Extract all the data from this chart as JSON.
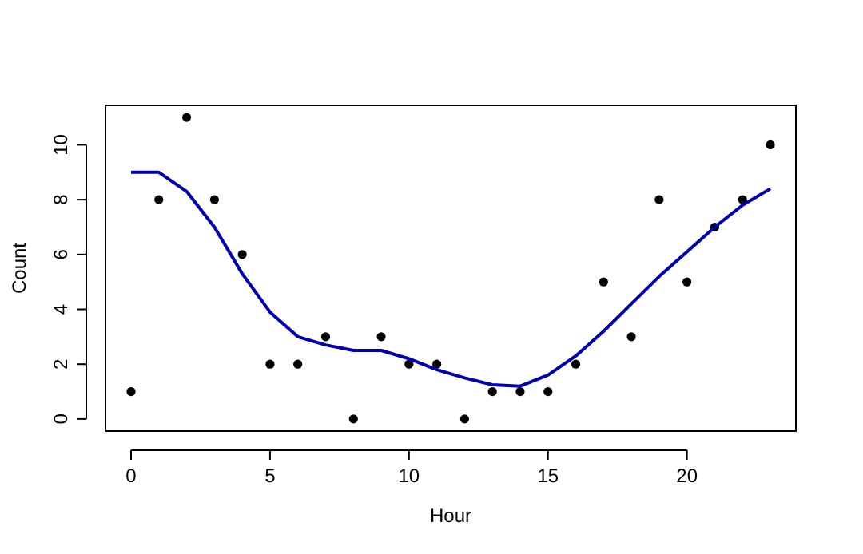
{
  "chart_data": {
    "type": "scatter",
    "xlabel": "Hour",
    "ylabel": "Count",
    "x": [
      0,
      1,
      2,
      3,
      4,
      5,
      6,
      7,
      8,
      9,
      10,
      11,
      12,
      13,
      14,
      15,
      16,
      17,
      18,
      19,
      20,
      21,
      22,
      23
    ],
    "xlim": [
      -0.92,
      23.92
    ],
    "ylim": [
      -0.44,
      11.44
    ],
    "xticks": [
      0,
      5,
      10,
      15,
      20
    ],
    "yticks": [
      0,
      2,
      4,
      6,
      8,
      10
    ],
    "series": [
      {
        "color": "#000000",
        "marker": "circle",
        "values": [
          1,
          8,
          11,
          8,
          6,
          2,
          2,
          3,
          0,
          3,
          2,
          2,
          0,
          1,
          1,
          1,
          2,
          5,
          3,
          8,
          5,
          7,
          8,
          10
        ]
      },
      {
        "type": "line",
        "color": "#0000b3",
        "marker": "none",
        "line_style": "solid",
        "values": [
          9.0,
          9.0,
          8.3,
          7.0,
          5.3,
          3.9,
          3.0,
          2.7,
          2.5,
          2.5,
          2.2,
          1.8,
          1.5,
          1.25,
          1.2,
          1.6,
          2.3,
          3.2,
          4.2,
          5.2,
          6.1,
          7.0,
          7.8,
          8.4
        ]
      }
    ]
  }
}
